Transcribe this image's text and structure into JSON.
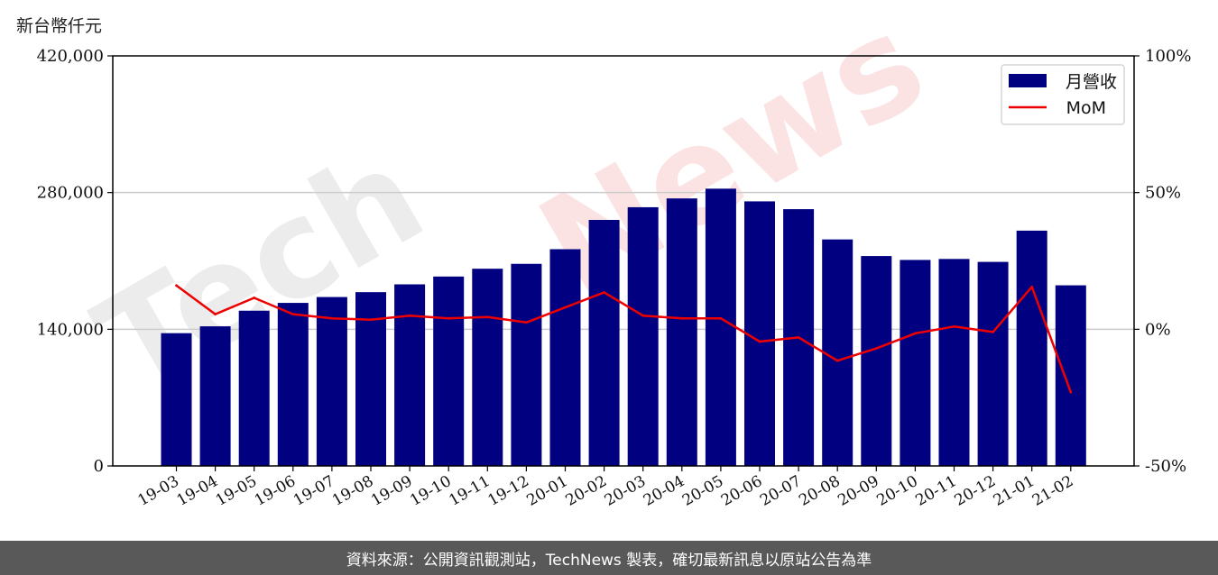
{
  "y_unit_label": "新台幣仟元",
  "footer_text": "資料來源：公開資訊觀測站，TechNews 製表，確切最新訊息以原站公告為準",
  "watermark_text": "TechNews",
  "colors": {
    "bar": "#000080",
    "line": "#ee0000",
    "grid": "#cccccc",
    "watermark_gray": "#ececec",
    "watermark_red": "#fbe3e3",
    "footer_bg": "#595959"
  },
  "chart_data": {
    "type": "bar",
    "categories": [
      "19-03",
      "19-04",
      "19-05",
      "19-06",
      "19-07",
      "19-08",
      "19-09",
      "19-10",
      "19-11",
      "19-12",
      "20-01",
      "20-02",
      "20-03",
      "20-04",
      "20-05",
      "20-06",
      "20-07",
      "20-08",
      "20-09",
      "20-10",
      "20-11",
      "20-12",
      "21-01",
      "21-02"
    ],
    "series": [
      {
        "name": "月營收",
        "type": "bar",
        "axis": "left",
        "values": [
          136000,
          143000,
          159000,
          167000,
          173000,
          178000,
          186000,
          194000,
          202000,
          207000,
          222000,
          252000,
          265000,
          274000,
          284000,
          271000,
          263000,
          232000,
          215000,
          211000,
          212000,
          209000,
          241000,
          185000
        ]
      },
      {
        "name": "MoM",
        "type": "line",
        "axis": "right",
        "values": [
          16,
          5.5,
          11.5,
          5.5,
          4,
          3.5,
          5,
          4,
          4.5,
          2.5,
          8,
          13.5,
          5,
          4,
          4,
          -4.5,
          -3,
          -11.5,
          -7,
          -1.5,
          1,
          -1,
          15.5,
          -23
        ]
      }
    ],
    "y_left": {
      "min": 0,
      "max": 420000,
      "ticks": [
        "0",
        "140,000",
        "280,000",
        "420,000"
      ],
      "tick_values": [
        0,
        140000,
        280000,
        420000
      ]
    },
    "y_right": {
      "min": -50,
      "max": 100,
      "ticks": [
        "-50%",
        "0%",
        "50%",
        "100%"
      ],
      "tick_values": [
        -50,
        0,
        50,
        100
      ]
    },
    "grid": "horizontal",
    "legend": "top-right"
  }
}
